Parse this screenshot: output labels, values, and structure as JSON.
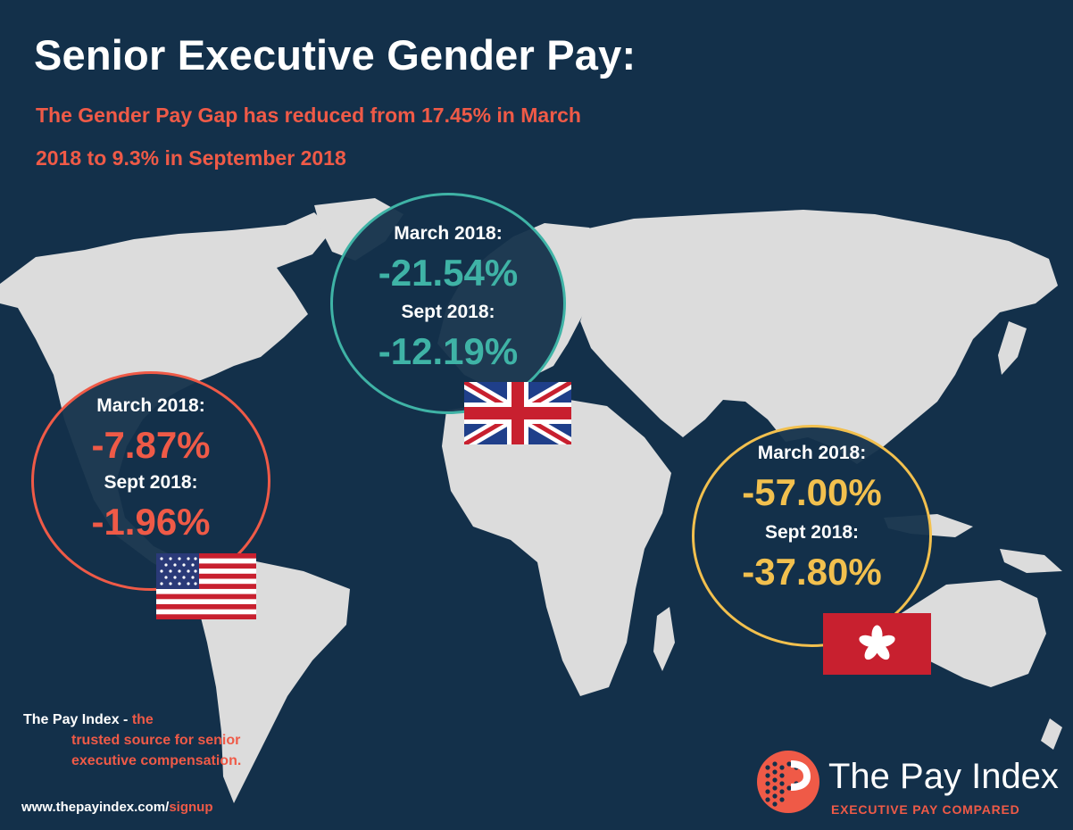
{
  "title": "Senior Executive Gender Pay:",
  "subtitle_line1": "The Gender Pay Gap has reduced from 17.45% in March",
  "subtitle_line2": "2018 to 9.3% in September 2018",
  "regions": {
    "us": {
      "flag": "us-flag-icon",
      "color": "#ef5a47",
      "march_label": "March 2018:",
      "march_value": "-7.87%",
      "sept_label": "Sept 2018:",
      "sept_value": "-1.96%"
    },
    "uk": {
      "flag": "uk-flag-icon",
      "color": "#3fb3a6",
      "march_label": "March 2018:",
      "march_value": "-21.54%",
      "sept_label": "Sept 2018:",
      "sept_value": "-12.19%"
    },
    "hk": {
      "flag": "hong-kong-flag-icon",
      "color": "#f2c04e",
      "march_label": "March 2018:",
      "march_value": "-57.00%",
      "sept_label": "Sept 2018:",
      "sept_value": "-37.80%"
    }
  },
  "tagline": {
    "brand": "The Pay Index - ",
    "rest_1": "the",
    "rest_2": "trusted source for senior",
    "rest_3": "executive compensation."
  },
  "url": {
    "base": "www.thepayindex.com/",
    "path": "signup"
  },
  "logo": {
    "name": "The Pay Index",
    "tagline": "EXECUTIVE PAY COMPARED",
    "icon": "pay-index-logo-icon"
  },
  "colors": {
    "background": "#13304a",
    "map_land": "#dcdcdc",
    "accent_red": "#ef5a47",
    "accent_teal": "#3fb3a6",
    "accent_yellow": "#f2c04e"
  }
}
